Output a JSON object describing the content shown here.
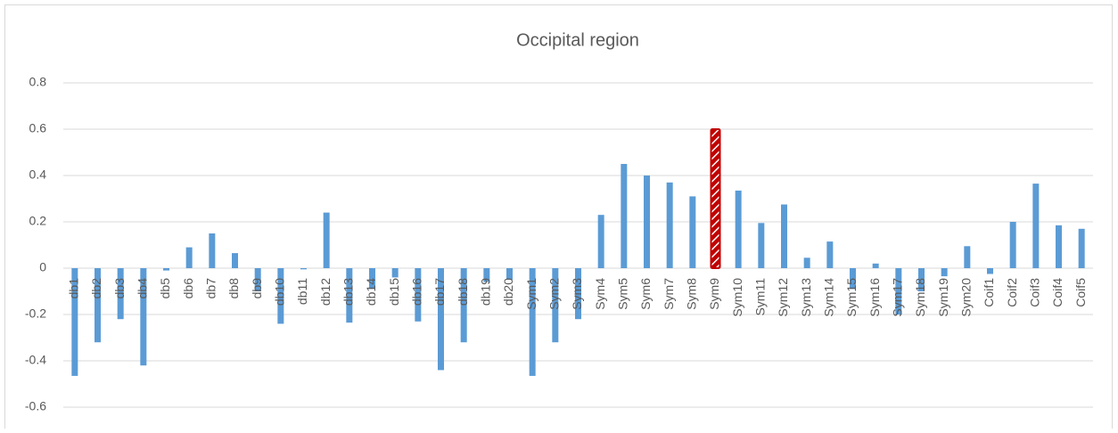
{
  "chart_data": {
    "type": "bar",
    "title": "Occipital region",
    "categories": [
      "db1",
      "db2",
      "db3",
      "db4",
      "db5",
      "db6",
      "db7",
      "db8",
      "db9",
      "db10",
      "db11",
      "db12",
      "db13",
      "db14",
      "db15",
      "db16",
      "db17",
      "db18",
      "db19",
      "db20",
      "Sym1",
      "Sym2",
      "Sym3",
      "Sym4",
      "Sym5",
      "Sym6",
      "Sym7",
      "Sym8",
      "Sym9",
      "Sym10",
      "Sym11",
      "Sym12",
      "Sym13",
      "Sym14",
      "Sym15",
      "Sym16",
      "Sym17",
      "Sym18",
      "Sym19",
      "Sym20",
      "Coif1",
      "Coif2",
      "Coif3",
      "Coif4",
      "Coif5"
    ],
    "values": [
      -0.465,
      -0.32,
      -0.22,
      -0.42,
      -0.01,
      0.09,
      0.15,
      0.065,
      -0.1,
      -0.24,
      -0.005,
      0.24,
      -0.235,
      -0.09,
      -0.04,
      -0.23,
      -0.44,
      -0.32,
      -0.06,
      -0.05,
      -0.465,
      -0.32,
      -0.22,
      0.23,
      0.45,
      0.4,
      0.37,
      0.31,
      0.6,
      0.335,
      0.195,
      0.275,
      0.045,
      0.115,
      -0.09,
      0.02,
      -0.2,
      -0.1,
      -0.035,
      0.095,
      -0.025,
      0.2,
      0.365,
      0.185,
      0.17
    ],
    "color": "#5b9bd5",
    "highlight_index": 28,
    "highlight_color": "#c00000",
    "ylim": [
      -0.6,
      0.8
    ],
    "yticks": [
      -0.6,
      -0.4,
      -0.2,
      0,
      0.2,
      0.4,
      0.6,
      0.8
    ],
    "grid": true
  }
}
